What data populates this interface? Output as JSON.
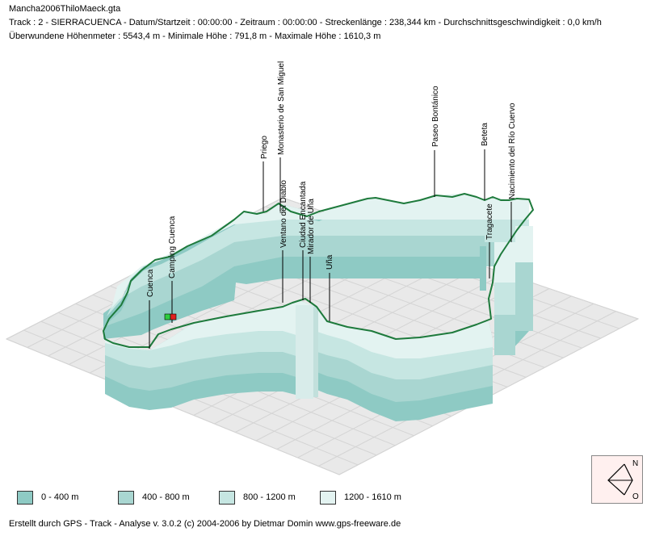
{
  "header": {
    "filename": "Mancha2006ThiloMaeck.gta",
    "info": "Track : 2 - SIERRACUENCA - Datum/Startzeit : 00:00:00 - Zeitraum : 00:00:00 - Streckenlänge : 238,344 km - Durchschnittsgeschwindigkeit : 0,0 km/h",
    "heights": "Überwundene Höhenmeter : 5543,4 m  -  Minimale Höhe : 791,8 m  -  Maximale Höhe : 1610,3 m"
  },
  "waypoints": [
    {
      "label": "Cuenca"
    },
    {
      "label": "Camping Cuenca"
    },
    {
      "label": "Priego"
    },
    {
      "label": "Monasterio de San Miguel"
    },
    {
      "label": "Ventano del Diablo"
    },
    {
      "label": "Ciudad Encantada"
    },
    {
      "label": "Mirador de Uña"
    },
    {
      "label": "Uña"
    },
    {
      "label": "Paseo Bontánico"
    },
    {
      "label": "Beteta"
    },
    {
      "label": "Tragacete"
    },
    {
      "label": "Nacimiento del Río Cuervo"
    }
  ],
  "legend": [
    {
      "label": "0 - 400 m",
      "color": "#8ecac4"
    },
    {
      "label": "400 - 800 m",
      "color": "#a9d6d1"
    },
    {
      "label": "800 - 1200 m",
      "color": "#c6e6e2"
    },
    {
      "label": "1200 - 1610 m",
      "color": "#e3f3f1"
    }
  ],
  "compass": {
    "north": "N",
    "east": "O",
    "icon": "compass-icon"
  },
  "footer": "Erstellt durch  GPS - Track - Analyse   v. 3.0.2   (c) 2004-2006 by Dietmar Domin  www.gps-freeware.de",
  "colors": {
    "track": "#1e7a3c",
    "grid": "#c8c8c8",
    "ground": "#e8e8e8"
  }
}
